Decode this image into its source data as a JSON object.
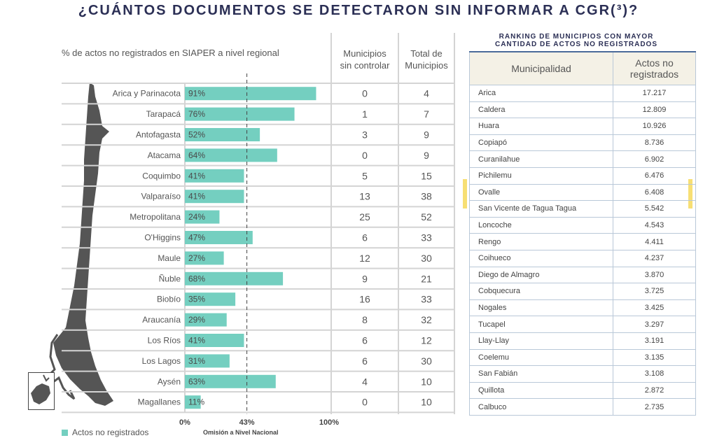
{
  "title": "¿CUÁNTOS DOCUMENTOS SE DETECTARON SIN INFORMAR A CGR(³)?",
  "chart_data": {
    "type": "bar",
    "title": "% de actos no registrados en SIAPER a nivel regional",
    "categories": [
      "Arica y Parinacota",
      "Tarapacá",
      "Antofagasta",
      "Atacama",
      "Coquimbo",
      "Valparaíso",
      "Metropolitana",
      "O'Higgins",
      "Maule",
      "Ñuble",
      "Biobío",
      "Araucanía",
      "Los Ríos",
      "Los Lagos",
      "Aysén",
      "Magallanes"
    ],
    "series": [
      {
        "name": "Actos no registrados",
        "values": [
          91,
          76,
          52,
          64,
          41,
          41,
          24,
          47,
          27,
          68,
          35,
          29,
          41,
          31,
          63,
          11
        ],
        "unit": "%"
      }
    ],
    "value_labels": [
      "91%",
      "76%",
      "52%",
      "64%",
      "41%",
      "41%",
      "24%",
      "47%",
      "27%",
      "68%",
      "35%",
      "29%",
      "41%",
      "31%",
      "63%",
      "11%"
    ],
    "xlim": [
      0,
      100
    ],
    "x_tick_labels": [
      "0%",
      "43%",
      "100%"
    ],
    "reference_line": {
      "value": 43,
      "label": "Omisión a Nivel Nacional",
      "style": "dashed"
    },
    "bar_color": "#74cfc0",
    "legend": {
      "label": "Actos no registrados",
      "placement": "bottom-left"
    },
    "table_columns": [
      {
        "header": "Municipios sin controlar",
        "values": [
          "0",
          "1",
          "3",
          "0",
          "5",
          "13",
          "25",
          "6",
          "12",
          "9",
          "16",
          "8",
          "6",
          "6",
          "4",
          "0"
        ]
      },
      {
        "header": "Total de Municipios",
        "values": [
          "4",
          "7",
          "9",
          "9",
          "15",
          "38",
          "52",
          "33",
          "30",
          "21",
          "33",
          "32",
          "12",
          "30",
          "10",
          "10"
        ]
      }
    ]
  },
  "columns": {
    "municipios_line1": "Municipios",
    "municipios_line2": "sin controlar",
    "total_line1": "Total  de",
    "total_line2": "Municipios"
  },
  "ranking": {
    "title_line1": "RANKING DE MUNICIPIOS CON MAYOR",
    "title_line2": "CANTIDAD DE ACTOS NO REGISTRADOS",
    "header_municipalidad": "Municipalidad",
    "header_actos_line1": "Actos no",
    "header_actos_line2": "registrados",
    "highlighted_row": "Ovalle",
    "highlight_color": "#f7df74",
    "rows": [
      {
        "municipalidad": "Arica",
        "actos": "17.217"
      },
      {
        "municipalidad": "Caldera",
        "actos": "12.809"
      },
      {
        "municipalidad": "Huara",
        "actos": "10.926"
      },
      {
        "municipalidad": "Copiapó",
        "actos": "8.736"
      },
      {
        "municipalidad": "Curanilahue",
        "actos": "6.902"
      },
      {
        "municipalidad": "Pichilemu",
        "actos": "6.476"
      },
      {
        "municipalidad": "Ovalle",
        "actos": "6.408"
      },
      {
        "municipalidad": "San Vicente de Tagua Tagua",
        "actos": "5.542"
      },
      {
        "municipalidad": "Loncoche",
        "actos": "4.543"
      },
      {
        "municipalidad": "Rengo",
        "actos": "4.411"
      },
      {
        "municipalidad": "Coihueco",
        "actos": "4.237"
      },
      {
        "municipalidad": "Diego de Almagro",
        "actos": "3.870"
      },
      {
        "municipalidad": "Cobquecura",
        "actos": "3.725"
      },
      {
        "municipalidad": "Nogales",
        "actos": "3.425"
      },
      {
        "municipalidad": "Tucapel",
        "actos": "3.297"
      },
      {
        "municipalidad": "Llay-Llay",
        "actos": "3.191"
      },
      {
        "municipalidad": "Coelemu",
        "actos": "3.135"
      },
      {
        "municipalidad": "San Fabián",
        "actos": "3.108"
      },
      {
        "municipalidad": "Quillota",
        "actos": "2.872"
      },
      {
        "municipalidad": "Calbuco",
        "actos": "2.735"
      }
    ]
  }
}
